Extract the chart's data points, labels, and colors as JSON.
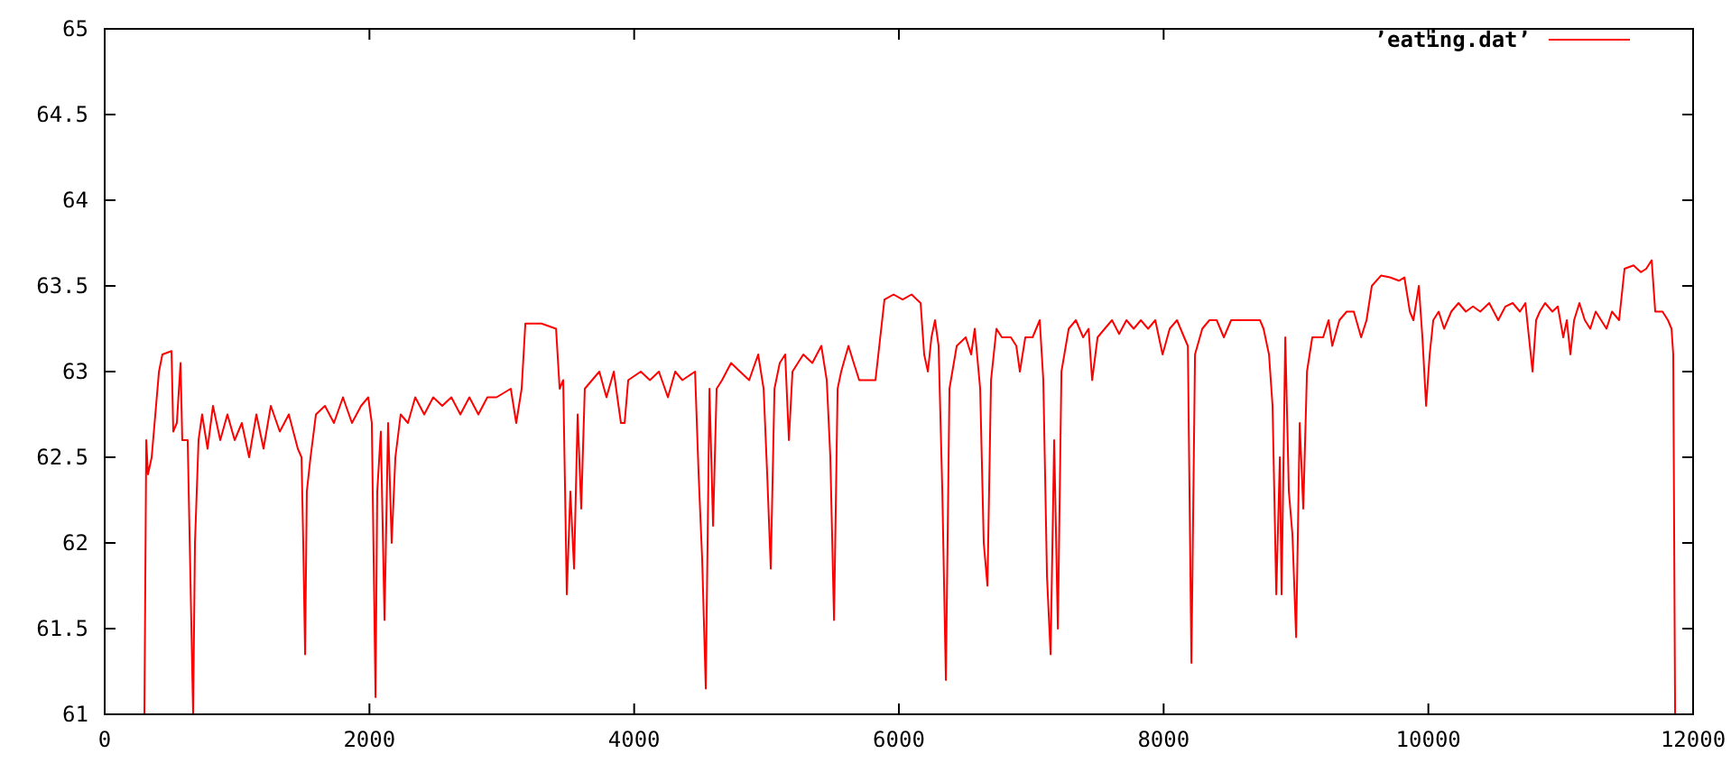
{
  "chart_data": {
    "type": "line",
    "xlim": [
      0,
      12000
    ],
    "ylim": [
      61,
      65
    ],
    "xticks": [
      0,
      2000,
      4000,
      6000,
      8000,
      10000,
      12000
    ],
    "yticks": [
      61,
      61.5,
      62,
      62.5,
      63,
      63.5,
      64,
      64.5,
      65
    ],
    "grid": false,
    "legend": "top right",
    "marker": "none",
    "line_style": "solid",
    "series": [
      {
        "name": "’eating.dat’",
        "color": "#ff0000",
        "x": [
          300,
          314,
          327,
          355,
          410,
          436,
          505,
          518,
          545,
          573,
          586,
          627,
          668,
          682,
          709,
          736,
          777,
          818,
          873,
          927,
          982,
          1036,
          1091,
          1146,
          1200,
          1255,
          1323,
          1391,
          1459,
          1487,
          1500,
          1514,
          1527,
          1555,
          1596,
          1664,
          1732,
          1800,
          1868,
          1937,
          1991,
          2018,
          2046,
          2059,
          2086,
          2114,
          2141,
          2168,
          2196,
          2236,
          2291,
          2346,
          2414,
          2482,
          2550,
          2619,
          2687,
          2755,
          2823,
          2891,
          2960,
          3068,
          3109,
          3150,
          3178,
          3300,
          3410,
          3437,
          3464,
          3491,
          3518,
          3546,
          3573,
          3600,
          3627,
          3682,
          3737,
          3791,
          3846,
          3900,
          3928,
          3955,
          4050,
          4119,
          4187,
          4255,
          4310,
          4364,
          4460,
          4487,
          4514,
          4541,
          4569,
          4596,
          4623,
          4664,
          4732,
          4800,
          4869,
          4937,
          4978,
          5005,
          5032,
          5060,
          5100,
          5141,
          5169,
          5196,
          5278,
          5346,
          5414,
          5455,
          5482,
          5510,
          5537,
          5564,
          5619,
          5659,
          5700,
          5755,
          5823,
          5891,
          5960,
          6028,
          6096,
          6164,
          6191,
          6219,
          6246,
          6273,
          6300,
          6328,
          6355,
          6382,
          6437,
          6505,
          6546,
          6573,
          6614,
          6641,
          6669,
          6696,
          6737,
          6778,
          6846,
          6887,
          6914,
          6955,
          7010,
          7064,
          7091,
          7119,
          7146,
          7173,
          7201,
          7228,
          7283,
          7337,
          7392,
          7433,
          7460,
          7501,
          7555,
          7610,
          7664,
          7719,
          7774,
          7828,
          7883,
          7937,
          7992,
          8046,
          8101,
          8155,
          8183,
          8210,
          8237,
          8292,
          8346,
          8401,
          8455,
          8510,
          8564,
          8619,
          8673,
          8728,
          8755,
          8796,
          8823,
          8851,
          8878,
          8891,
          8919,
          8946,
          8973,
          9001,
          9028,
          9055,
          9083,
          9123,
          9164,
          9205,
          9246,
          9274,
          9328,
          9383,
          9437,
          9492,
          9533,
          9573,
          9642,
          9710,
          9778,
          9819,
          9860,
          9887,
          9928,
          9955,
          9983,
          10010,
          10037,
          10078,
          10119,
          10173,
          10228,
          10283,
          10337,
          10392,
          10460,
          10528,
          10582,
          10637,
          10692,
          10733,
          10760,
          10787,
          10814,
          10842,
          10882,
          10937,
          10978,
          11019,
          11046,
          11073,
          11101,
          11141,
          11182,
          11223,
          11264,
          11305,
          11346,
          11387,
          11441,
          11482,
          11550,
          11605,
          11646,
          11687,
          11714,
          11769,
          11810,
          11837,
          11850,
          11864
        ],
        "values": [
          61.0,
          62.6,
          62.4,
          62.5,
          63.0,
          63.1,
          63.12,
          62.65,
          62.7,
          63.05,
          62.6,
          62.6,
          61.0,
          62.0,
          62.6,
          62.75,
          62.55,
          62.8,
          62.6,
          62.75,
          62.6,
          62.7,
          62.5,
          62.75,
          62.55,
          62.8,
          62.65,
          62.75,
          62.55,
          62.5,
          62.0,
          61.35,
          62.3,
          62.5,
          62.75,
          62.8,
          62.7,
          62.85,
          62.7,
          62.8,
          62.85,
          62.7,
          61.1,
          62.3,
          62.65,
          61.55,
          62.7,
          62.0,
          62.5,
          62.75,
          62.7,
          62.85,
          62.75,
          62.85,
          62.8,
          62.85,
          62.75,
          62.85,
          62.75,
          62.85,
          62.85,
          62.9,
          62.7,
          62.9,
          63.28,
          63.28,
          63.25,
          62.9,
          62.95,
          61.7,
          62.3,
          61.85,
          62.75,
          62.2,
          62.9,
          62.95,
          63.0,
          62.85,
          63.0,
          62.7,
          62.7,
          62.95,
          63.0,
          62.95,
          63.0,
          62.85,
          63.0,
          62.95,
          63.0,
          62.4,
          61.9,
          61.15,
          62.9,
          62.1,
          62.9,
          62.95,
          63.05,
          63.0,
          62.95,
          63.1,
          62.9,
          62.4,
          61.85,
          62.9,
          63.05,
          63.1,
          62.6,
          63.0,
          63.1,
          63.05,
          63.15,
          62.95,
          62.5,
          61.55,
          62.9,
          63.0,
          63.15,
          63.05,
          62.95,
          62.95,
          62.95,
          63.42,
          63.45,
          63.42,
          63.45,
          63.4,
          63.1,
          63.0,
          63.2,
          63.3,
          63.15,
          62.3,
          61.2,
          62.9,
          63.15,
          63.2,
          63.1,
          63.25,
          62.9,
          62.0,
          61.75,
          62.95,
          63.25,
          63.2,
          63.2,
          63.15,
          63.0,
          63.2,
          63.2,
          63.3,
          62.95,
          61.8,
          61.35,
          62.6,
          61.5,
          63.0,
          63.25,
          63.3,
          63.2,
          63.25,
          62.95,
          63.2,
          63.25,
          63.3,
          63.22,
          63.3,
          63.25,
          63.3,
          63.25,
          63.3,
          63.1,
          63.25,
          63.3,
          63.2,
          63.15,
          61.3,
          63.1,
          63.25,
          63.3,
          63.3,
          63.2,
          63.3,
          63.3,
          63.3,
          63.3,
          63.3,
          63.25,
          63.1,
          62.8,
          61.7,
          62.5,
          61.7,
          63.2,
          62.3,
          62.05,
          61.45,
          62.7,
          62.2,
          63.0,
          63.2,
          63.2,
          63.2,
          63.3,
          63.15,
          63.3,
          63.35,
          63.35,
          63.2,
          63.3,
          63.5,
          63.56,
          63.55,
          63.53,
          63.55,
          63.35,
          63.3,
          63.5,
          63.2,
          62.8,
          63.1,
          63.3,
          63.35,
          63.25,
          63.35,
          63.4,
          63.35,
          63.38,
          63.35,
          63.4,
          63.3,
          63.38,
          63.4,
          63.35,
          63.4,
          63.2,
          63.0,
          63.3,
          63.35,
          63.4,
          63.35,
          63.38,
          63.2,
          63.3,
          63.1,
          63.3,
          63.4,
          63.3,
          63.25,
          63.35,
          63.3,
          63.25,
          63.35,
          63.3,
          63.6,
          63.62,
          63.58,
          63.6,
          63.65,
          63.35,
          63.35,
          63.3,
          63.25,
          63.1,
          61.0
        ]
      }
    ]
  }
}
